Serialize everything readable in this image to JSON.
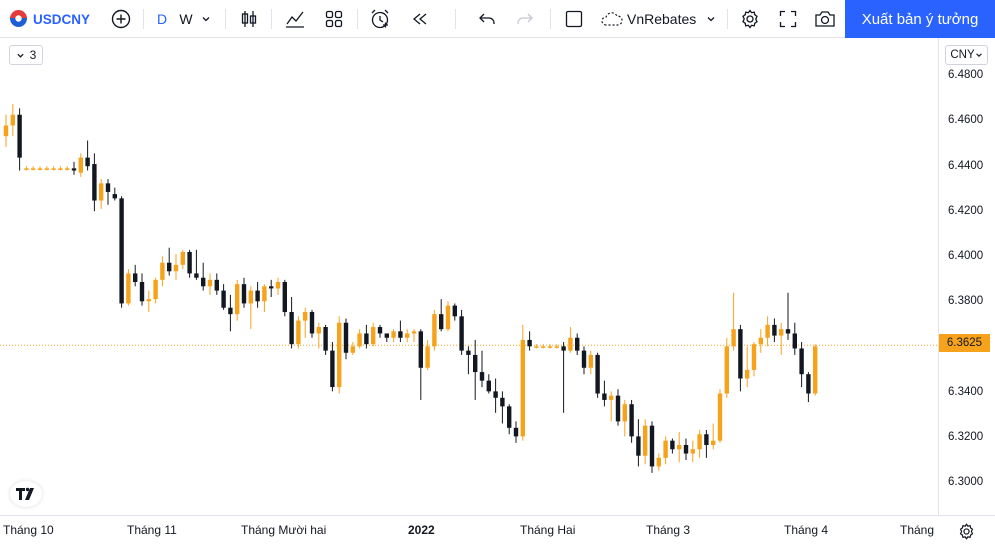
{
  "toolbar": {
    "symbol": "USDCNY",
    "intervals": [
      "D",
      "W"
    ],
    "indicator_template": "VnRebates",
    "publish_label": "Xuất bản ý tưởng"
  },
  "legend": {
    "collapse_count": "3"
  },
  "price_axis": {
    "currency": "CNY",
    "labels": [
      "6.4800",
      "6.4600",
      "6.4400",
      "6.4200",
      "6.4000",
      "6.3800",
      "6.3400",
      "6.3200",
      "6.3000"
    ],
    "last_price": "6.3625"
  },
  "time_axis": {
    "labels": [
      "Tháng 10",
      "Tháng 11",
      "Tháng Mười hai",
      "2022",
      "Tháng Hai",
      "Tháng 3",
      "Tháng 4",
      "Tháng"
    ]
  },
  "colors": {
    "up": "#f7a21b",
    "down": "#131722",
    "accent": "#2962ff",
    "last_line": "#f7a21b"
  },
  "chart_data": {
    "type": "candlestick",
    "symbol": "USDCNY",
    "y_range": [
      6.295,
      6.489
    ],
    "last_price": 6.3625,
    "ohlc": [
      [
        6.46,
        6.47,
        6.455,
        6.465
      ],
      [
        6.465,
        6.475,
        6.46,
        6.47
      ],
      [
        6.47,
        6.473,
        6.444,
        6.45
      ],
      [
        6.445,
        6.446,
        6.444,
        6.445
      ],
      [
        6.445,
        6.446,
        6.444,
        6.445
      ],
      [
        6.445,
        6.446,
        6.444,
        6.445
      ],
      [
        6.445,
        6.446,
        6.444,
        6.445
      ],
      [
        6.445,
        6.446,
        6.444,
        6.445
      ],
      [
        6.445,
        6.446,
        6.444,
        6.445
      ],
      [
        6.445,
        6.446,
        6.444,
        6.445
      ],
      [
        6.445,
        6.448,
        6.442,
        6.444
      ],
      [
        6.443,
        6.452,
        6.441,
        6.45
      ],
      [
        6.45,
        6.458,
        6.444,
        6.446
      ],
      [
        6.447,
        6.452,
        6.425,
        6.43
      ],
      [
        6.43,
        6.44,
        6.426,
        6.438
      ],
      [
        6.438,
        6.44,
        6.428,
        6.434
      ],
      [
        6.433,
        6.436,
        6.43,
        6.431
      ],
      [
        6.431,
        6.432,
        6.38,
        6.382
      ],
      [
        6.382,
        6.398,
        6.381,
        6.396
      ],
      [
        6.396,
        6.4,
        6.39,
        6.392
      ],
      [
        6.392,
        6.396,
        6.381,
        6.383
      ],
      [
        6.383,
        6.388,
        6.378,
        6.384
      ],
      [
        6.384,
        6.394,
        6.382,
        6.393
      ],
      [
        6.393,
        6.404,
        6.39,
        6.401
      ],
      [
        6.401,
        6.408,
        6.395,
        6.397
      ],
      [
        6.397,
        6.405,
        6.393,
        6.4
      ],
      [
        6.4,
        6.407,
        6.398,
        6.406
      ],
      [
        6.406,
        6.407,
        6.394,
        6.396
      ],
      [
        6.396,
        6.407,
        6.393,
        6.394
      ],
      [
        6.394,
        6.401,
        6.388,
        6.39
      ],
      [
        6.39,
        6.396,
        6.386,
        6.393
      ],
      [
        6.393,
        6.396,
        6.386,
        6.388
      ],
      [
        6.388,
        6.391,
        6.379,
        6.38
      ],
      [
        6.38,
        6.386,
        6.369,
        6.377
      ],
      [
        6.377,
        6.393,
        6.374,
        6.391
      ],
      [
        6.391,
        6.394,
        6.38,
        6.382
      ],
      [
        6.382,
        6.39,
        6.37,
        6.388
      ],
      [
        6.388,
        6.392,
        6.38,
        6.383
      ],
      [
        6.383,
        6.391,
        6.378,
        6.39
      ],
      [
        6.39,
        6.393,
        6.385,
        6.389
      ],
      [
        6.389,
        6.394,
        6.386,
        6.392
      ],
      [
        6.392,
        6.393,
        6.376,
        6.378
      ],
      [
        6.378,
        6.385,
        6.361,
        6.363
      ],
      [
        6.363,
        6.376,
        6.361,
        6.374
      ],
      [
        6.374,
        6.38,
        6.366,
        6.378
      ],
      [
        6.378,
        6.379,
        6.366,
        6.368
      ],
      [
        6.368,
        6.373,
        6.361,
        6.371
      ],
      [
        6.371,
        6.372,
        6.358,
        6.36
      ],
      [
        6.36,
        6.364,
        6.341,
        6.343
      ],
      [
        6.343,
        6.376,
        6.34,
        6.373
      ],
      [
        6.373,
        6.375,
        6.356,
        6.359
      ],
      [
        6.359,
        6.364,
        6.358,
        6.362
      ],
      [
        6.362,
        6.37,
        6.361,
        6.368
      ],
      [
        6.368,
        6.372,
        6.361,
        6.363
      ],
      [
        6.363,
        6.373,
        6.362,
        6.371
      ],
      [
        6.371,
        6.372,
        6.366,
        6.368
      ],
      [
        6.368,
        6.368,
        6.364,
        6.366
      ],
      [
        6.366,
        6.37,
        6.364,
        6.369
      ],
      [
        6.369,
        6.374,
        6.364,
        6.366
      ],
      [
        6.366,
        6.37,
        6.364,
        6.368
      ],
      [
        6.368,
        6.37,
        6.364,
        6.369
      ],
      [
        6.369,
        6.37,
        6.337,
        6.352
      ],
      [
        6.352,
        6.365,
        6.351,
        6.362
      ],
      [
        6.362,
        6.379,
        6.36,
        6.377
      ],
      [
        6.377,
        6.384,
        6.369,
        6.37
      ],
      [
        6.37,
        6.383,
        6.369,
        6.381
      ],
      [
        6.381,
        6.382,
        6.374,
        6.376
      ],
      [
        6.376,
        6.379,
        6.358,
        6.36
      ],
      [
        6.36,
        6.362,
        6.349,
        6.358
      ],
      [
        6.358,
        6.365,
        6.337,
        6.35
      ],
      [
        6.35,
        6.36,
        6.343,
        6.346
      ],
      [
        6.346,
        6.349,
        6.34,
        6.341
      ],
      [
        6.341,
        6.347,
        6.331,
        6.338
      ],
      [
        6.338,
        6.341,
        6.326,
        6.334
      ],
      [
        6.334,
        6.335,
        6.321,
        6.324
      ],
      [
        6.324,
        6.327,
        6.317,
        6.32
      ],
      [
        6.32,
        6.372,
        6.318,
        6.365
      ],
      [
        6.365,
        6.369,
        6.36,
        6.362
      ],
      [
        6.362,
        6.363,
        6.361,
        6.362
      ],
      [
        6.362,
        6.363,
        6.361,
        6.362
      ],
      [
        6.362,
        6.363,
        6.361,
        6.362
      ],
      [
        6.362,
        6.363,
        6.361,
        6.362
      ],
      [
        6.362,
        6.364,
        6.331,
        6.36
      ],
      [
        6.36,
        6.371,
        6.359,
        6.366
      ],
      [
        6.366,
        6.368,
        6.358,
        6.36
      ],
      [
        6.36,
        6.362,
        6.349,
        6.352
      ],
      [
        6.352,
        6.36,
        6.349,
        6.358
      ],
      [
        6.358,
        6.359,
        6.338,
        6.34
      ],
      [
        6.34,
        6.346,
        6.334,
        6.337
      ],
      [
        6.337,
        6.341,
        6.327,
        6.339
      ],
      [
        6.339,
        6.342,
        6.325,
        6.327
      ],
      [
        6.327,
        6.337,
        6.32,
        6.335
      ],
      [
        6.335,
        6.337,
        6.317,
        6.32
      ],
      [
        6.32,
        6.328,
        6.306,
        6.311
      ],
      [
        6.311,
        6.328,
        6.307,
        6.325
      ],
      [
        6.325,
        6.327,
        6.303,
        6.306
      ],
      [
        6.306,
        6.312,
        6.304,
        6.31
      ],
      [
        6.31,
        6.32,
        6.307,
        6.318
      ],
      [
        6.318,
        6.319,
        6.312,
        6.314
      ],
      [
        6.314,
        6.322,
        6.308,
        6.316
      ],
      [
        6.316,
        6.319,
        6.309,
        6.312
      ],
      [
        6.312,
        6.318,
        6.308,
        6.314
      ],
      [
        6.314,
        6.323,
        6.31,
        6.321
      ],
      [
        6.321,
        6.323,
        6.31,
        6.316
      ],
      [
        6.316,
        6.326,
        6.314,
        6.318
      ],
      [
        6.318,
        6.342,
        6.317,
        6.34
      ],
      [
        6.34,
        6.366,
        6.338,
        6.362
      ],
      [
        6.362,
        6.387,
        6.36,
        6.37
      ],
      [
        6.37,
        6.372,
        6.341,
        6.347
      ],
      [
        6.347,
        6.362,
        6.343,
        6.351
      ],
      [
        6.351,
        6.364,
        6.348,
        6.363
      ],
      [
        6.363,
        6.37,
        6.359,
        6.366
      ],
      [
        6.366,
        6.376,
        6.362,
        6.372
      ],
      [
        6.372,
        6.375,
        6.364,
        6.367
      ],
      [
        6.367,
        6.373,
        6.358,
        6.37
      ],
      [
        6.37,
        6.387,
        6.365,
        6.368
      ],
      [
        6.368,
        6.373,
        6.358,
        6.361
      ],
      [
        6.361,
        6.364,
        6.343,
        6.349
      ],
      [
        6.349,
        6.35,
        6.336,
        6.34
      ],
      [
        6.34,
        6.363,
        6.339,
        6.362
      ]
    ]
  }
}
